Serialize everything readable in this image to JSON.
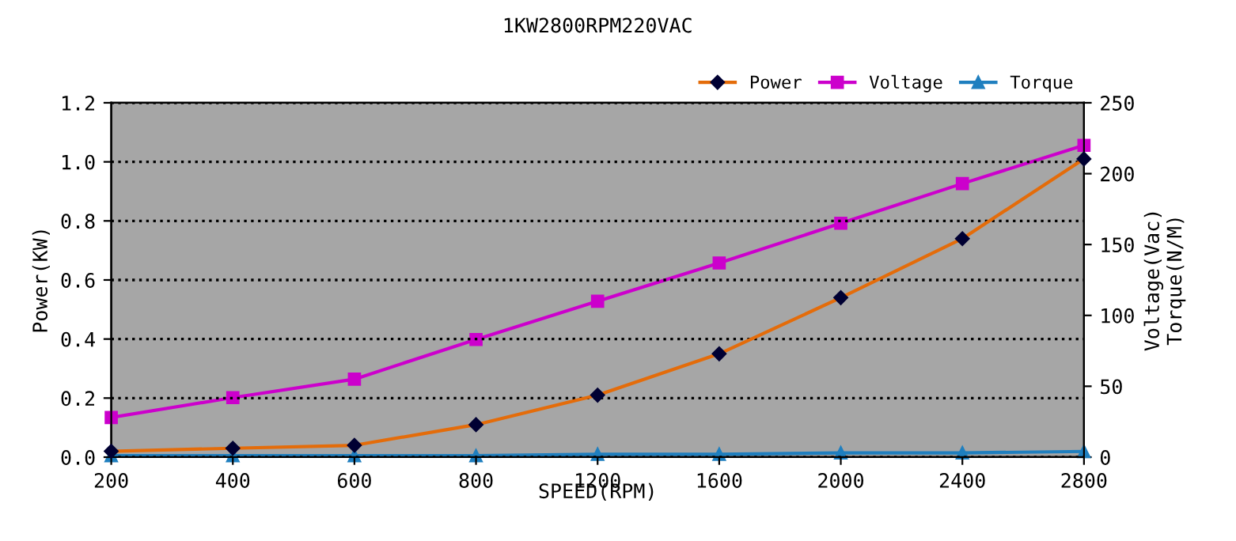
{
  "chart_data": {
    "type": "line",
    "title": "1KW2800RPM220VAC",
    "xlabel": "SPEED(RPM)",
    "ylabel": "Power(KW)",
    "y2label": "Voltage(Vac)\nTorque(N/M)",
    "categories": [
      "200",
      "400",
      "600",
      "800",
      "1200",
      "1600",
      "2000",
      "2400",
      "2800"
    ],
    "series": [
      {
        "name": "Power",
        "color": "#e46c0a",
        "marker": "diamond",
        "values": [
          0.02,
          0.03,
          0.04,
          0.11,
          0.21,
          0.35,
          0.54,
          0.74,
          1.01
        ]
      },
      {
        "name": "Voltage",
        "color": "#cc00cc",
        "marker": "square",
        "axis": "y2",
        "values": [
          28,
          42,
          55,
          83,
          110,
          137,
          165,
          193,
          220
        ]
      },
      {
        "name": "Torque",
        "color": "#1f7fbf",
        "marker": "triangle",
        "axis": "y2",
        "values": [
          1,
          1,
          1,
          1,
          2,
          2,
          3,
          3,
          4
        ]
      }
    ],
    "ylim": [
      0,
      1.2
    ],
    "yticks": [
      {
        "value": 0,
        "label": "0.0"
      },
      0.2,
      0.4,
      0.6,
      0.8,
      {
        "value": 1.0,
        "label": "1.0"
      },
      1.2
    ],
    "y2lim": [
      0,
      250
    ],
    "y2ticks": [
      0,
      50,
      100,
      150,
      200,
      250
    ],
    "grid": "y",
    "legend": "top right"
  }
}
